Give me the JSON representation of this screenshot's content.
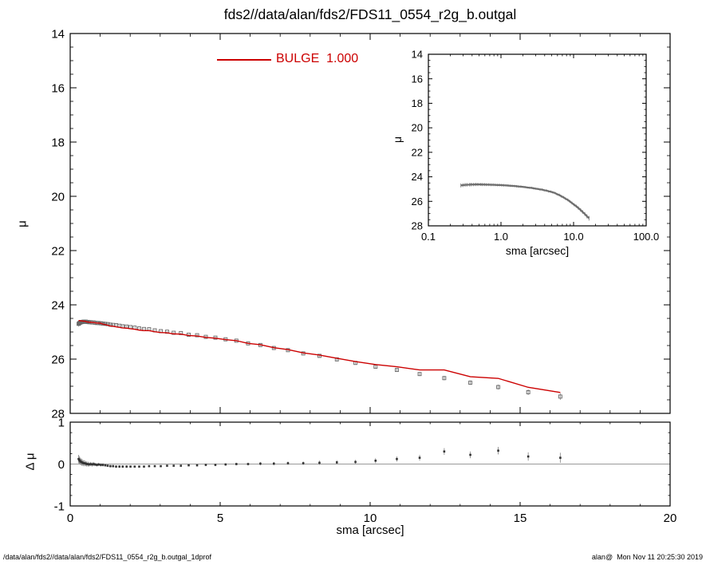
{
  "title": "fds2//data/alan/fds2/FDS11_0554_r2g_b.outgal",
  "legend": {
    "label": "BULGE  1.000",
    "color": "#cc0000"
  },
  "footer": {
    "left": "/data/alan/fds2//data/alan/fds2/FDS11_0554_r2g_b.outgal_1dprof",
    "right": "alan@  Mon Nov 11 20:25:30 2019"
  },
  "sma": [
    0.28,
    0.3,
    0.32,
    0.34,
    0.37,
    0.39,
    0.42,
    0.45,
    0.48,
    0.52,
    0.55,
    0.59,
    0.63,
    0.68,
    0.73,
    0.78,
    0.83,
    0.89,
    0.95,
    1.02,
    1.09,
    1.17,
    1.25,
    1.34,
    1.43,
    1.53,
    1.64,
    1.75,
    1.88,
    2.01,
    2.15,
    2.3,
    2.46,
    2.63,
    2.82,
    3.02,
    3.23,
    3.45,
    3.69,
    3.95,
    4.23,
    4.52,
    4.84,
    5.18,
    5.54,
    5.93,
    6.34,
    6.79,
    7.26,
    7.77,
    8.31,
    8.89,
    9.51,
    10.18,
    10.89,
    11.65,
    12.47,
    13.34,
    14.27,
    15.27,
    16.34
  ],
  "mu": [
    24.7,
    24.68,
    24.66,
    24.65,
    24.64,
    24.63,
    24.63,
    24.62,
    24.62,
    24.62,
    24.63,
    24.63,
    24.64,
    24.64,
    24.65,
    24.65,
    24.66,
    24.67,
    24.67,
    24.68,
    24.69,
    24.7,
    24.71,
    24.73,
    24.74,
    24.75,
    24.77,
    24.79,
    24.8,
    24.82,
    24.84,
    24.87,
    24.89,
    24.9,
    24.94,
    24.97,
    24.99,
    25.03,
    25.04,
    25.1,
    25.12,
    25.18,
    25.21,
    25.27,
    25.32,
    25.42,
    25.48,
    25.59,
    25.67,
    25.79,
    25.88,
    26.01,
    26.14,
    26.28,
    26.4,
    26.55,
    26.7,
    26.87,
    27.03,
    27.22,
    27.38
  ],
  "mu_err": [
    0.1,
    0.09,
    0.09,
    0.08,
    0.08,
    0.08,
    0.07,
    0.07,
    0.07,
    0.06,
    0.06,
    0.06,
    0.05,
    0.05,
    0.05,
    0.05,
    0.04,
    0.04,
    0.04,
    0.04,
    0.04,
    0.03,
    0.03,
    0.03,
    0.03,
    0.03,
    0.03,
    0.03,
    0.03,
    0.02,
    0.02,
    0.02,
    0.02,
    0.02,
    0.02,
    0.02,
    0.02,
    0.02,
    0.02,
    0.02,
    0.03,
    0.03,
    0.03,
    0.03,
    0.03,
    0.03,
    0.04,
    0.04,
    0.04,
    0.04,
    0.05,
    0.05,
    0.05,
    0.06,
    0.06,
    0.07,
    0.08,
    0.08,
    0.09,
    0.1,
    0.12
  ],
  "model_mu": [
    24.58,
    24.58,
    24.58,
    24.59,
    24.59,
    24.59,
    24.6,
    24.6,
    24.6,
    24.61,
    24.63,
    24.63,
    24.64,
    24.64,
    24.65,
    24.65,
    24.66,
    24.67,
    24.67,
    24.68,
    24.71,
    24.73,
    24.75,
    24.78,
    24.79,
    24.81,
    24.83,
    24.85,
    24.86,
    24.88,
    24.9,
    24.93,
    24.95,
    24.95,
    24.99,
    25.02,
    25.03,
    25.07,
    25.08,
    25.13,
    25.15,
    25.2,
    25.23,
    25.28,
    25.32,
    25.42,
    25.47,
    25.58,
    25.65,
    25.77,
    25.85,
    25.97,
    26.09,
    26.2,
    26.28,
    26.4,
    26.4,
    26.65,
    26.71,
    27.04,
    27.23
  ],
  "residual_dmu": [
    0.12,
    0.1,
    0.08,
    0.06,
    0.05,
    0.04,
    0.03,
    0.02,
    0.02,
    0.01,
    0.0,
    0.0,
    -0.01,
    0.0,
    -0.01,
    0.0,
    -0.01,
    -0.02,
    -0.01,
    -0.02,
    -0.02,
    -0.03,
    -0.04,
    -0.05,
    -0.05,
    -0.06,
    -0.06,
    -0.06,
    -0.06,
    -0.06,
    -0.06,
    -0.06,
    -0.06,
    -0.05,
    -0.05,
    -0.05,
    -0.04,
    -0.04,
    -0.04,
    -0.03,
    -0.03,
    -0.02,
    -0.02,
    -0.01,
    0.0,
    0.0,
    0.01,
    0.01,
    0.02,
    0.02,
    0.03,
    0.04,
    0.05,
    0.08,
    0.12,
    0.15,
    0.3,
    0.22,
    0.32,
    0.18,
    0.15
  ],
  "chart_data": [
    {
      "id": "main",
      "type": "scatter",
      "title": "fds2//data/alan/fds2/FDS11_0554_r2g_b.outgal",
      "xlabel": "sma [arcsec]",
      "ylabel": "μ",
      "xlim": [
        0,
        20
      ],
      "ylim": [
        14,
        28
      ],
      "yinverted": true,
      "xscale": "linear",
      "xticks": {
        "values": [
          0,
          5,
          10,
          15,
          20
        ],
        "labels": [
          "0",
          "5",
          "10",
          "15",
          "20"
        ]
      },
      "xticklabels": false,
      "xminor": 1,
      "yticks": {
        "values": [
          14,
          16,
          18,
          20,
          22,
          24,
          26,
          28
        ],
        "labels": [
          "14",
          "16",
          "18",
          "20",
          "22",
          "24",
          "26",
          "28"
        ]
      },
      "yminor": 0.5,
      "series": [
        {
          "name": "surface-brightness-profile",
          "type": "scatter",
          "marker": "square",
          "color": "#666666",
          "size": 4,
          "x_from": "sma",
          "y_from": "mu",
          "yerr_from": "mu_err"
        },
        {
          "name": "BULGE 1.000",
          "type": "line",
          "color": "#cc0000",
          "width": 1.4,
          "x_from": "sma",
          "y_from": "model_mu"
        }
      ]
    },
    {
      "id": "inset",
      "type": "line",
      "xlabel": "sma [arcsec]",
      "ylabel": "μ",
      "xlim": [
        0.1,
        100
      ],
      "ylim": [
        14,
        28
      ],
      "yinverted": true,
      "xscale": "log",
      "xticks": {
        "values": [
          0.1,
          1,
          10,
          100
        ],
        "labels": [
          "0.1",
          "1.0",
          "10.0",
          "100.0"
        ]
      },
      "xticklabels": true,
      "yticks": {
        "values": [
          14,
          16,
          18,
          20,
          22,
          24,
          26,
          28
        ],
        "labels": [
          "14",
          "16",
          "18",
          "20",
          "22",
          "24",
          "26",
          "28"
        ]
      },
      "yminor": 0.5,
      "series": [
        {
          "name": "surface-brightness-profile-log",
          "type": "band",
          "color": "#6e6e6e",
          "width": 2.2,
          "x_from": "sma",
          "y_from": "mu",
          "yerr_from": "mu_err"
        }
      ]
    },
    {
      "id": "residual",
      "type": "scatter",
      "xlabel": "sma [arcsec]",
      "ylabel": "Δ μ",
      "xlim": [
        0,
        20
      ],
      "ylim": [
        -1,
        1
      ],
      "yinverted": false,
      "xscale": "linear",
      "xticks": {
        "values": [
          0,
          5,
          10,
          15,
          20
        ],
        "labels": [
          "0",
          "5",
          "10",
          "15",
          "20"
        ]
      },
      "xticklabels": true,
      "xminor": 1,
      "yticks": {
        "values": [
          -1,
          0,
          1
        ],
        "labels": [
          "-1",
          "0",
          "1"
        ]
      },
      "yminor": 0.25,
      "zeroline": true,
      "series": [
        {
          "name": "residuals",
          "type": "scatter",
          "marker": "square-filled",
          "color": "#333333",
          "size": 2.6,
          "x_from": "sma",
          "y_from": "residual_dmu",
          "yerr_from": "mu_err"
        }
      ]
    }
  ]
}
